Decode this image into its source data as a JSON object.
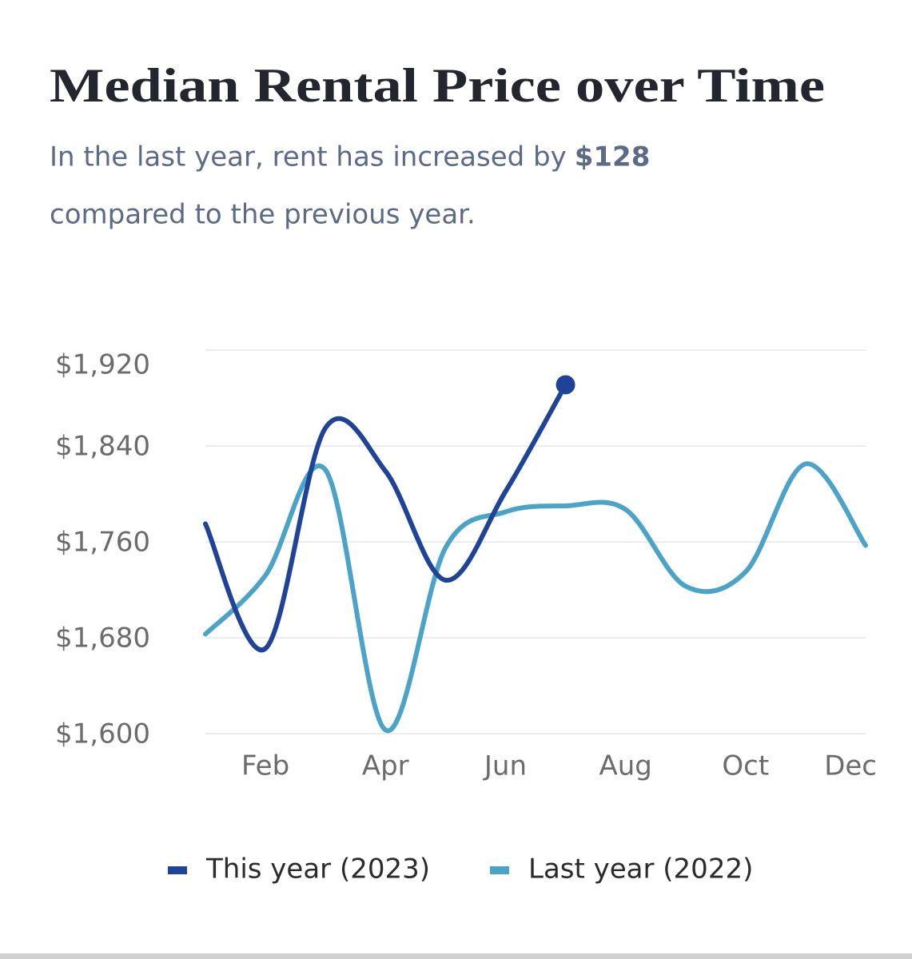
{
  "chart_data": {
    "type": "line",
    "title": "Median Rental Price over Time",
    "subtitle": {
      "text": "In the last year, rent has increased by",
      "highlight": "$128",
      "text_end": "compared to the previous year."
    },
    "categories": [
      null,
      "Feb",
      null,
      "Apr",
      null,
      "Jun",
      null,
      "Aug",
      null,
      "Oct",
      null,
      "Dec"
    ],
    "series": [
      {
        "name": "This year (2023)",
        "color": "#1f4396",
        "values": [
          1775,
          1671,
          1855,
          1819,
          1728,
          1802,
          1891,
          null,
          null,
          null,
          null,
          null
        ]
      },
      {
        "name": "Last year (2022)",
        "color": "#4ba3c7",
        "values": [
          1683,
          1732,
          1820,
          1603,
          1755,
          1785,
          1790,
          1787,
          1723,
          1735,
          1825,
          1757
        ]
      }
    ],
    "ylim": [
      1600,
      1920
    ],
    "yticks": [
      {
        "value": 1600,
        "label": "$1,600"
      },
      {
        "value": 1680,
        "label": "$1,680"
      },
      {
        "value": 1760,
        "label": "$1,760"
      },
      {
        "value": 1840,
        "label": "$1,840"
      },
      {
        "value": 1920,
        "label": "$1,920"
      }
    ],
    "grid": true,
    "legend": "bottom"
  }
}
